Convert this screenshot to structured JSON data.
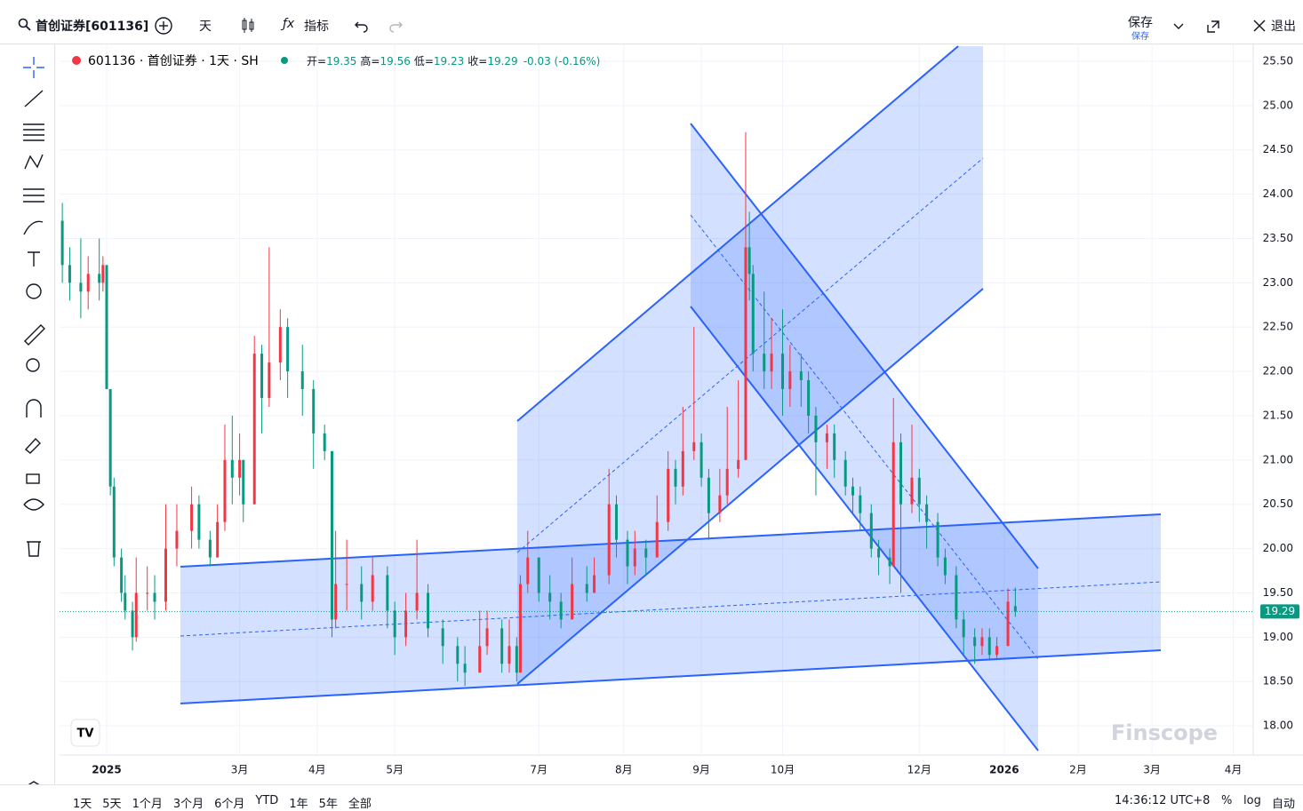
{
  "toolbar": {
    "symbol": "首创证券[601136]",
    "interval": "天",
    "indicators": "指标",
    "save": "保存",
    "save_sub": "保存",
    "exit": "退出"
  },
  "legend": {
    "symbol": "601136 · 首创证券 · 1天 · SH",
    "ohlc": [
      {
        "label": "开=",
        "value": "19.35"
      },
      {
        "label": "高=",
        "value": "19.56"
      },
      {
        "label": "低=",
        "value": "19.23"
      },
      {
        "label": "收=",
        "value": "19.29"
      }
    ],
    "change": "-0.03 (-0.16%)"
  },
  "watermark": "Finscope",
  "bottom_bar": {
    "ranges": [
      "1天",
      "5天",
      "1个月",
      "3个月",
      "6个月",
      "YTD",
      "1年",
      "5年",
      "全部"
    ],
    "time": "14:36:12 UTC+8",
    "percent": "%",
    "log": "log",
    "auto": "自动"
  },
  "chart_data": {
    "type": "candlestick",
    "up_color": "#f23645",
    "down_color": "#089981",
    "grid": true,
    "xlim": [
      -12.75,
      310.4
    ],
    "xticks": [
      {
        "value": 0,
        "label": "2025"
      },
      {
        "value": 36,
        "label": "3月"
      },
      {
        "value": 57,
        "label": "4月"
      },
      {
        "value": 78,
        "label": "5月"
      },
      {
        "value": 117,
        "label": "7月"
      },
      {
        "value": 140,
        "label": "8月"
      },
      {
        "value": 161,
        "label": "9月"
      },
      {
        "value": 183,
        "label": "10月"
      },
      {
        "value": 220,
        "label": "12月"
      },
      {
        "value": 243,
        "label": "2026"
      },
      {
        "value": 263,
        "label": "2月"
      },
      {
        "value": 283,
        "label": "3月"
      },
      {
        "value": 305,
        "label": "4月"
      }
    ],
    "ylim": [
      17.67,
      25.69
    ],
    "yticks": [
      {
        "value": 18,
        "label": "18.00"
      },
      {
        "value": 18.5,
        "label": "18.50"
      },
      {
        "value": 19,
        "label": "19.00"
      },
      {
        "value": 19.5,
        "label": "19.50"
      },
      {
        "value": 20,
        "label": "20.00"
      },
      {
        "value": 20.5,
        "label": "20.50"
      },
      {
        "value": 21,
        "label": "21.00"
      },
      {
        "value": 21.5,
        "label": "21.50"
      },
      {
        "value": 22,
        "label": "22.00"
      },
      {
        "value": 22.5,
        "label": "22.50"
      },
      {
        "value": 23,
        "label": "23.00"
      },
      {
        "value": 23.5,
        "label": "23.50"
      },
      {
        "value": 24,
        "label": "24.00"
      },
      {
        "value": 24.5,
        "label": "24.50"
      },
      {
        "value": 25,
        "label": "25.00"
      },
      {
        "value": 25.5,
        "label": "25.50"
      }
    ],
    "candles": [
      {
        "x": -12,
        "open": 23.7,
        "high": 23.9,
        "low": 23.0,
        "close": 23.2
      },
      {
        "x": -10,
        "open": 23.2,
        "high": 23.4,
        "low": 22.8,
        "close": 23.0
      },
      {
        "x": -7,
        "open": 23.0,
        "high": 23.5,
        "low": 22.6,
        "close": 22.9
      },
      {
        "x": -5,
        "open": 22.9,
        "high": 23.3,
        "low": 22.7,
        "close": 23.1
      },
      {
        "x": -2,
        "open": 23.1,
        "high": 23.5,
        "low": 22.8,
        "close": 23.0
      },
      {
        "x": -1,
        "open": 23.0,
        "high": 23.3,
        "low": 22.9,
        "close": 23.2
      },
      {
        "x": 0,
        "open": 23.2,
        "high": 23.2,
        "low": 21.8,
        "close": 21.8
      },
      {
        "x": 1,
        "open": 21.8,
        "high": 21.8,
        "low": 20.6,
        "close": 20.7
      },
      {
        "x": 2,
        "open": 20.7,
        "high": 20.8,
        "low": 19.8,
        "close": 19.9
      },
      {
        "x": 4,
        "open": 19.9,
        "high": 20.0,
        "low": 19.4,
        "close": 19.5
      },
      {
        "x": 5,
        "open": 19.5,
        "high": 19.7,
        "low": 19.2,
        "close": 19.3
      },
      {
        "x": 7,
        "open": 19.3,
        "high": 19.4,
        "low": 18.85,
        "close": 19.0
      },
      {
        "x": 8,
        "open": 19.0,
        "high": 19.9,
        "low": 18.95,
        "close": 19.5
      },
      {
        "x": 11,
        "open": 19.5,
        "high": 19.8,
        "low": 19.3,
        "close": 19.5
      },
      {
        "x": 13,
        "open": 19.5,
        "high": 19.7,
        "low": 19.2,
        "close": 19.4
      },
      {
        "x": 16,
        "open": 19.4,
        "high": 20.5,
        "low": 19.3,
        "close": 20.0
      },
      {
        "x": 19,
        "open": 20.0,
        "high": 20.5,
        "low": 19.8,
        "close": 20.2
      },
      {
        "x": 23,
        "open": 20.2,
        "high": 20.7,
        "low": 20.0,
        "close": 20.5
      },
      {
        "x": 25,
        "open": 20.5,
        "high": 20.6,
        "low": 20.0,
        "close": 20.1
      },
      {
        "x": 28,
        "open": 20.1,
        "high": 20.2,
        "low": 19.8,
        "close": 19.9
      },
      {
        "x": 30,
        "open": 19.9,
        "high": 20.5,
        "low": 19.9,
        "close": 20.3
      },
      {
        "x": 32,
        "open": 20.3,
        "high": 21.4,
        "low": 20.2,
        "close": 21.0
      },
      {
        "x": 34,
        "open": 21.0,
        "high": 21.5,
        "low": 20.5,
        "close": 20.8
      },
      {
        "x": 36,
        "open": 20.8,
        "high": 21.3,
        "low": 20.6,
        "close": 21.0
      },
      {
        "x": 37,
        "open": 21.0,
        "high": 21.0,
        "low": 20.3,
        "close": 20.5
      },
      {
        "x": 40,
        "open": 20.5,
        "high": 22.4,
        "low": 20.5,
        "close": 22.2
      },
      {
        "x": 42,
        "open": 22.2,
        "high": 22.3,
        "low": 21.3,
        "close": 21.7
      },
      {
        "x": 44,
        "open": 21.7,
        "high": 23.4,
        "low": 21.6,
        "close": 22.1
      },
      {
        "x": 47,
        "open": 22.1,
        "high": 22.7,
        "low": 21.9,
        "close": 22.5
      },
      {
        "x": 49,
        "open": 22.5,
        "high": 22.6,
        "low": 21.7,
        "close": 22.0
      },
      {
        "x": 53,
        "open": 22.0,
        "high": 22.3,
        "low": 21.5,
        "close": 21.8
      },
      {
        "x": 56,
        "open": 21.8,
        "high": 21.9,
        "low": 20.9,
        "close": 21.3
      },
      {
        "x": 59,
        "open": 21.3,
        "high": 21.4,
        "low": 21.0,
        "close": 21.1
      },
      {
        "x": 61,
        "open": 21.1,
        "high": 21.1,
        "low": 19.0,
        "close": 19.2
      },
      {
        "x": 62,
        "open": 19.2,
        "high": 20.2,
        "low": 19.1,
        "close": 19.6
      },
      {
        "x": 65,
        "open": 19.6,
        "high": 20.1,
        "low": 19.3,
        "close": 19.6
      },
      {
        "x": 69,
        "open": 19.6,
        "high": 19.8,
        "low": 19.2,
        "close": 19.4
      },
      {
        "x": 72,
        "open": 19.4,
        "high": 19.9,
        "low": 19.3,
        "close": 19.7
      },
      {
        "x": 76,
        "open": 19.7,
        "high": 19.8,
        "low": 19.1,
        "close": 19.3
      },
      {
        "x": 78,
        "open": 19.3,
        "high": 19.4,
        "low": 18.8,
        "close": 19.0
      },
      {
        "x": 81,
        "open": 19.0,
        "high": 19.5,
        "low": 18.9,
        "close": 19.3
      },
      {
        "x": 84,
        "open": 19.3,
        "high": 20.1,
        "low": 19.2,
        "close": 19.5
      },
      {
        "x": 87,
        "open": 19.5,
        "high": 19.6,
        "low": 19.0,
        "close": 19.1
      },
      {
        "x": 91,
        "open": 19.1,
        "high": 19.2,
        "low": 18.7,
        "close": 18.9
      },
      {
        "x": 95,
        "open": 18.9,
        "high": 19.0,
        "low": 18.5,
        "close": 18.7
      },
      {
        "x": 97,
        "open": 18.7,
        "high": 18.9,
        "low": 18.45,
        "close": 18.6
      },
      {
        "x": 101,
        "open": 18.6,
        "high": 19.3,
        "low": 18.6,
        "close": 18.9
      },
      {
        "x": 103,
        "open": 18.9,
        "high": 19.3,
        "low": 18.8,
        "close": 19.1
      },
      {
        "x": 107,
        "open": 19.1,
        "high": 19.2,
        "low": 18.6,
        "close": 18.7
      },
      {
        "x": 109,
        "open": 18.7,
        "high": 19.2,
        "low": 18.6,
        "close": 18.9
      },
      {
        "x": 111,
        "open": 18.9,
        "high": 19.0,
        "low": 18.5,
        "close": 18.6
      },
      {
        "x": 112,
        "open": 18.6,
        "high": 19.7,
        "low": 18.6,
        "close": 19.6
      },
      {
        "x": 114,
        "open": 19.6,
        "high": 20.2,
        "low": 19.5,
        "close": 19.9
      },
      {
        "x": 117,
        "open": 19.9,
        "high": 19.9,
        "low": 19.4,
        "close": 19.5
      },
      {
        "x": 120,
        "open": 19.5,
        "high": 19.7,
        "low": 19.2,
        "close": 19.4
      },
      {
        "x": 123,
        "open": 19.4,
        "high": 19.5,
        "low": 19.1,
        "close": 19.2
      },
      {
        "x": 126,
        "open": 19.2,
        "high": 19.9,
        "low": 19.2,
        "close": 19.6
      },
      {
        "x": 130,
        "open": 19.6,
        "high": 19.8,
        "low": 19.4,
        "close": 19.5
      },
      {
        "x": 132,
        "open": 19.5,
        "high": 19.9,
        "low": 19.5,
        "close": 19.7
      },
      {
        "x": 136,
        "open": 19.7,
        "high": 20.9,
        "low": 19.6,
        "close": 20.5
      },
      {
        "x": 138,
        "open": 20.5,
        "high": 20.6,
        "low": 19.9,
        "close": 20.1
      },
      {
        "x": 141,
        "open": 20.1,
        "high": 20.2,
        "low": 19.6,
        "close": 19.8
      },
      {
        "x": 143,
        "open": 19.8,
        "high": 20.2,
        "low": 19.7,
        "close": 20.0
      },
      {
        "x": 146,
        "open": 20.0,
        "high": 20.1,
        "low": 19.7,
        "close": 19.9
      },
      {
        "x": 149,
        "open": 19.9,
        "high": 20.6,
        "low": 19.9,
        "close": 20.3
      },
      {
        "x": 152,
        "open": 20.3,
        "high": 21.1,
        "low": 20.2,
        "close": 20.9
      },
      {
        "x": 154,
        "open": 20.9,
        "high": 21.0,
        "low": 20.5,
        "close": 20.7
      },
      {
        "x": 156,
        "open": 20.7,
        "high": 21.6,
        "low": 20.6,
        "close": 21.1
      },
      {
        "x": 159,
        "open": 21.1,
        "high": 22.5,
        "low": 21.0,
        "close": 21.2
      },
      {
        "x": 161,
        "open": 21.2,
        "high": 21.3,
        "low": 20.7,
        "close": 20.8
      },
      {
        "x": 163,
        "open": 20.8,
        "high": 20.9,
        "low": 20.1,
        "close": 20.4
      },
      {
        "x": 166,
        "open": 20.4,
        "high": 20.9,
        "low": 20.3,
        "close": 20.6
      },
      {
        "x": 168,
        "open": 20.6,
        "high": 21.6,
        "low": 20.5,
        "close": 20.9
      },
      {
        "x": 171,
        "open": 20.9,
        "high": 21.9,
        "low": 20.8,
        "close": 21.0
      },
      {
        "x": 173,
        "open": 21.0,
        "high": 24.7,
        "low": 21.0,
        "close": 23.4
      },
      {
        "x": 174,
        "open": 23.4,
        "high": 23.8,
        "low": 22.8,
        "close": 23.1
      },
      {
        "x": 175,
        "open": 23.1,
        "high": 23.2,
        "low": 22.0,
        "close": 22.2
      },
      {
        "x": 178,
        "open": 22.2,
        "high": 22.9,
        "low": 21.8,
        "close": 22.0
      },
      {
        "x": 180,
        "open": 22.0,
        "high": 22.6,
        "low": 21.8,
        "close": 22.2
      },
      {
        "x": 183,
        "open": 22.2,
        "high": 22.7,
        "low": 21.5,
        "close": 21.8
      },
      {
        "x": 185,
        "open": 21.8,
        "high": 22.3,
        "low": 21.6,
        "close": 22.0
      },
      {
        "x": 188,
        "open": 22.0,
        "high": 22.2,
        "low": 21.6,
        "close": 21.9
      },
      {
        "x": 190,
        "open": 21.9,
        "high": 22.0,
        "low": 21.3,
        "close": 21.5
      },
      {
        "x": 192,
        "open": 21.5,
        "high": 21.6,
        "low": 20.6,
        "close": 21.2
      },
      {
        "x": 195,
        "open": 21.2,
        "high": 21.4,
        "low": 20.9,
        "close": 21.3
      },
      {
        "x": 197,
        "open": 21.3,
        "high": 21.4,
        "low": 20.8,
        "close": 21.0
      },
      {
        "x": 200,
        "open": 21.0,
        "high": 21.1,
        "low": 20.6,
        "close": 20.7
      },
      {
        "x": 202,
        "open": 20.7,
        "high": 20.8,
        "low": 20.4,
        "close": 20.6
      },
      {
        "x": 204,
        "open": 20.6,
        "high": 20.7,
        "low": 20.2,
        "close": 20.4
      },
      {
        "x": 207,
        "open": 20.4,
        "high": 20.5,
        "low": 19.9,
        "close": 20.0
      },
      {
        "x": 209,
        "open": 20.0,
        "high": 20.1,
        "low": 19.7,
        "close": 19.9
      },
      {
        "x": 212,
        "open": 19.9,
        "high": 20.0,
        "low": 19.6,
        "close": 19.8
      },
      {
        "x": 213,
        "open": 19.8,
        "high": 21.7,
        "low": 19.8,
        "close": 21.2
      },
      {
        "x": 215,
        "open": 21.2,
        "high": 21.3,
        "low": 19.5,
        "close": 20.5
      },
      {
        "x": 218,
        "open": 20.5,
        "high": 21.4,
        "low": 20.4,
        "close": 20.8
      },
      {
        "x": 220,
        "open": 20.8,
        "high": 20.9,
        "low": 20.3,
        "close": 20.5
      },
      {
        "x": 222,
        "open": 20.5,
        "high": 20.6,
        "low": 20.0,
        "close": 20.3
      },
      {
        "x": 225,
        "open": 20.3,
        "high": 20.4,
        "low": 19.8,
        "close": 19.9
      },
      {
        "x": 227,
        "open": 19.9,
        "high": 20.0,
        "low": 19.6,
        "close": 19.7
      },
      {
        "x": 230,
        "open": 19.7,
        "high": 19.8,
        "low": 19.1,
        "close": 19.2
      },
      {
        "x": 232,
        "open": 19.2,
        "high": 19.3,
        "low": 18.8,
        "close": 19.0
      },
      {
        "x": 235,
        "open": 19.0,
        "high": 19.1,
        "low": 18.7,
        "close": 18.9
      },
      {
        "x": 237,
        "open": 18.9,
        "high": 19.1,
        "low": 18.8,
        "close": 19.0
      },
      {
        "x": 239,
        "open": 19.0,
        "high": 19.1,
        "low": 18.75,
        "close": 18.8
      },
      {
        "x": 241,
        "open": 18.8,
        "high": 19.0,
        "low": 18.75,
        "close": 18.9
      },
      {
        "x": 244,
        "open": 18.9,
        "high": 19.55,
        "low": 18.9,
        "close": 19.4
      },
      {
        "x": 246,
        "open": 19.35,
        "high": 19.56,
        "low": 19.23,
        "close": 19.29
      }
    ]
  }
}
